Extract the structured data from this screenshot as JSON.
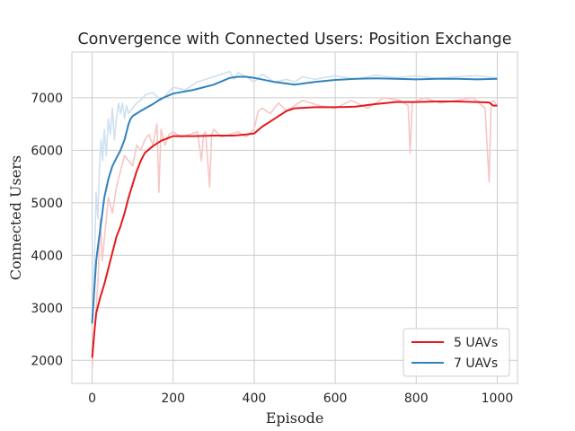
{
  "chart_data": {
    "type": "line",
    "title": "Convergence with Connected Users: Position Exchange",
    "xlabel": "Episode",
    "ylabel": "Connected Users",
    "xlim": [
      -50,
      1050
    ],
    "ylim": [
      1560,
      7870
    ],
    "xticks": [
      0,
      200,
      400,
      600,
      800,
      1000
    ],
    "yticks": [
      2000,
      3000,
      4000,
      5000,
      6000,
      7000
    ],
    "grid": true,
    "legend_position": "lower-right",
    "series": [
      {
        "name": "5 UAVs",
        "color": "#e31a1c",
        "raw_color": "#f7c6c6",
        "smoothed": {
          "x": [
            0,
            5,
            10,
            20,
            30,
            40,
            50,
            60,
            70,
            80,
            90,
            100,
            110,
            120,
            130,
            150,
            170,
            200,
            250,
            300,
            350,
            380,
            400,
            420,
            450,
            480,
            500,
            550,
            600,
            650,
            700,
            750,
            800,
            850,
            900,
            950,
            980,
            990,
            1000
          ],
          "y": [
            2050,
            2500,
            2900,
            3200,
            3450,
            3750,
            4050,
            4350,
            4550,
            4800,
            5100,
            5350,
            5600,
            5800,
            5950,
            6080,
            6180,
            6270,
            6270,
            6280,
            6280,
            6300,
            6320,
            6450,
            6600,
            6750,
            6800,
            6820,
            6820,
            6830,
            6880,
            6920,
            6920,
            6930,
            6930,
            6920,
            6910,
            6850,
            6850
          ]
        },
        "raw": {
          "x": [
            0,
            5,
            10,
            15,
            20,
            25,
            30,
            40,
            50,
            60,
            70,
            80,
            90,
            100,
            110,
            120,
            130,
            140,
            150,
            160,
            165,
            170,
            180,
            190,
            200,
            220,
            240,
            260,
            270,
            275,
            280,
            290,
            295,
            300,
            320,
            340,
            360,
            380,
            400,
            410,
            420,
            440,
            460,
            480,
            500,
            520,
            560,
            600,
            640,
            680,
            700,
            720,
            760,
            780,
            785,
            790,
            820,
            860,
            900,
            940,
            970,
            980,
            985,
            990,
            1000
          ],
          "y": [
            1850,
            2400,
            3000,
            3600,
            4700,
            3900,
            4300,
            5100,
            4800,
            5300,
            5600,
            5900,
            5800,
            5700,
            6100,
            6000,
            6200,
            6300,
            6100,
            6500,
            5200,
            6400,
            6100,
            6300,
            6350,
            6250,
            6300,
            6350,
            5800,
            6300,
            6350,
            5300,
            6300,
            6400,
            6250,
            6300,
            6350,
            6250,
            6400,
            6750,
            6800,
            6700,
            6900,
            6750,
            6850,
            6950,
            6850,
            6800,
            6950,
            6800,
            6900,
            7000,
            6950,
            6850,
            5950,
            6900,
            7000,
            6900,
            6950,
            7000,
            6800,
            5400,
            6900,
            6950,
            6850
          ]
        }
      },
      {
        "name": "7 UAVs",
        "color": "#3182bd",
        "raw_color": "#cfe1ef",
        "smoothed": {
          "x": [
            0,
            5,
            10,
            15,
            20,
            30,
            40,
            50,
            60,
            70,
            80,
            90,
            95,
            100,
            120,
            150,
            170,
            200,
            250,
            300,
            340,
            360,
            380,
            400,
            450,
            500,
            550,
            600,
            650,
            700,
            750,
            800,
            850,
            900,
            950,
            1000
          ],
          "y": [
            2700,
            3300,
            3900,
            4200,
            4500,
            5100,
            5450,
            5700,
            5850,
            6000,
            6200,
            6500,
            6600,
            6650,
            6750,
            6880,
            6980,
            7080,
            7150,
            7250,
            7380,
            7400,
            7400,
            7380,
            7300,
            7250,
            7300,
            7340,
            7360,
            7370,
            7360,
            7350,
            7360,
            7360,
            7350,
            7360
          ]
        },
        "raw": {
          "x": [
            0,
            3,
            6,
            10,
            14,
            18,
            22,
            26,
            30,
            35,
            40,
            45,
            50,
            55,
            60,
            65,
            70,
            75,
            80,
            85,
            90,
            100,
            110,
            120,
            130,
            150,
            170,
            200,
            230,
            260,
            300,
            320,
            340,
            350,
            360,
            380,
            400,
            420,
            450,
            480,
            500,
            520,
            550,
            600,
            650,
            700,
            750,
            800,
            850,
            900,
            950,
            1000
          ],
          "y": [
            2900,
            3300,
            4100,
            5200,
            4700,
            5700,
            6200,
            5800,
            6400,
            5900,
            6600,
            6300,
            6800,
            6200,
            6600,
            6900,
            6700,
            6900,
            6600,
            6850,
            6700,
            6800,
            6900,
            6950,
            7050,
            7100,
            6950,
            7200,
            7150,
            7300,
            7400,
            7450,
            7500,
            7350,
            7480,
            7400,
            7300,
            7450,
            7300,
            7350,
            7300,
            7400,
            7350,
            7420,
            7350,
            7430,
            7380,
            7420,
            7370,
            7400,
            7420,
            7380
          ]
        }
      }
    ]
  }
}
